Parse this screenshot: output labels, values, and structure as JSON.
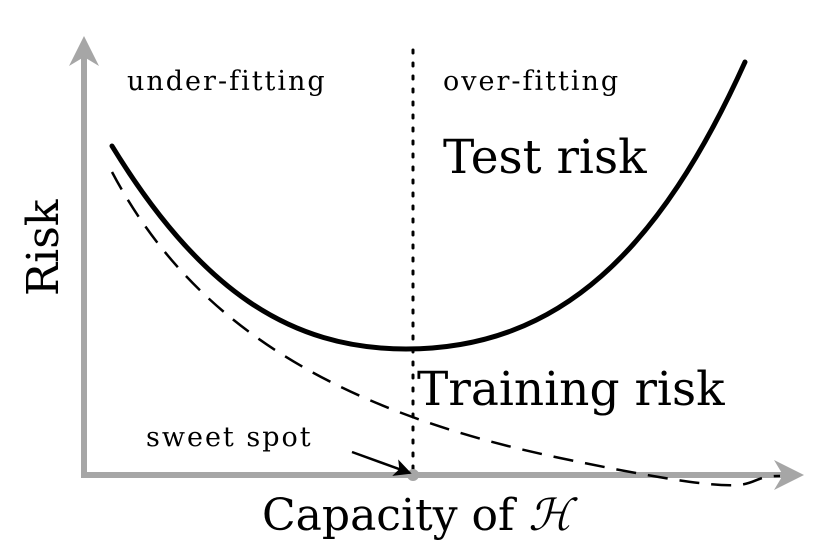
{
  "diagram": {
    "regions": {
      "left": "under-fitting",
      "right": "over-fitting"
    },
    "curves": {
      "test": "Test risk",
      "training": "Training risk"
    },
    "axes": {
      "y": "Risk",
      "x": "Capacity of ",
      "x_symbol": "ℋ"
    },
    "annotation": "sweet spot",
    "colors": {
      "axis": "#a6a6a6",
      "curve": "#000000",
      "text": "#000000"
    }
  }
}
